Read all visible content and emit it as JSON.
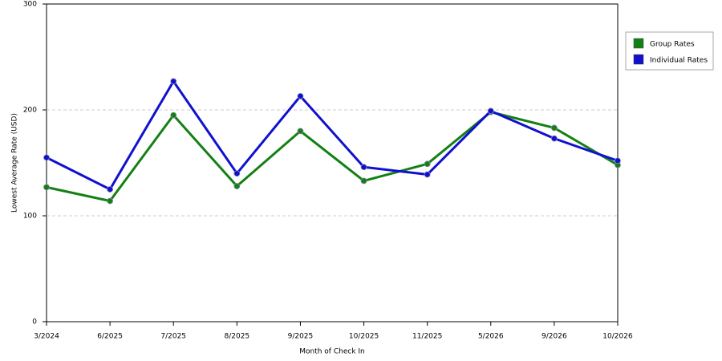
{
  "chart_data": {
    "type": "line",
    "x_label": "Month of Check In",
    "y_label": "Lowest Average Rate (USD)",
    "categories": [
      "3/2024",
      "6/2025",
      "7/2025",
      "8/2025",
      "9/2025",
      "10/2025",
      "11/2025",
      "5/2026",
      "9/2026",
      "10/2026"
    ],
    "series": [
      {
        "name": "Group Rates",
        "color": "#138013",
        "values": [
          127,
          114,
          195,
          128,
          180,
          133,
          149,
          198,
          183,
          148
        ]
      },
      {
        "name": "Individual Rates",
        "color": "#1010d0",
        "values": [
          155,
          125,
          227,
          140,
          213,
          146,
          139,
          199,
          173,
          152
        ]
      }
    ],
    "ylim": [
      0,
      300
    ],
    "yticks": [
      0,
      100,
      200,
      300
    ],
    "grid": true,
    "legend": "right"
  }
}
